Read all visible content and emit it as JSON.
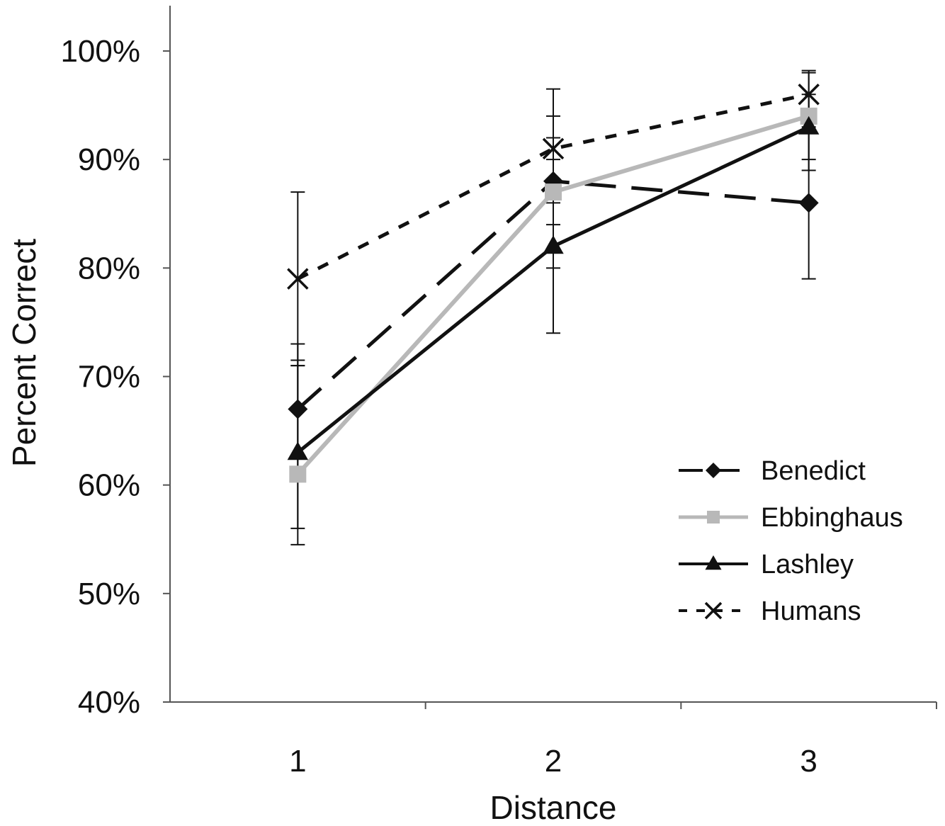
{
  "chart_data": {
    "type": "line",
    "title": "",
    "xlabel": "Distance",
    "ylabel": "Percent Correct",
    "categories": [
      "1",
      "2",
      "3"
    ],
    "ylim": [
      0.4,
      1.0
    ],
    "yticks": [
      0.4,
      0.5,
      0.6,
      0.7,
      0.8,
      0.9,
      1.0
    ],
    "ytick_labels": [
      "40%",
      "50%",
      "60%",
      "70%",
      "80%",
      "90%",
      "100%"
    ],
    "grid": false,
    "legend_position": "right",
    "series": [
      {
        "name": "Benedict",
        "values": [
          0.67,
          0.88,
          0.86
        ],
        "err_low": [
          0.61,
          0.84,
          0.79
        ],
        "err_high": [
          0.73,
          0.92,
          0.93
        ],
        "color": "#111111",
        "dash": "long-dash",
        "marker": "diamond"
      },
      {
        "name": "Ebbinghaus",
        "values": [
          0.61,
          0.87,
          0.94
        ],
        "err_low": [
          0.545,
          0.8,
          0.89
        ],
        "err_high": [
          0.715,
          0.94,
          0.98
        ],
        "color": "#b8b8b8",
        "dash": "solid",
        "marker": "square"
      },
      {
        "name": "Lashley",
        "values": [
          0.63,
          0.82,
          0.93
        ],
        "err_low": [
          0.56,
          0.74,
          0.9
        ],
        "err_high": [
          0.71,
          0.9,
          0.96
        ],
        "color": "#111111",
        "dash": "solid",
        "marker": "triangle"
      },
      {
        "name": "Humans",
        "values": [
          0.79,
          0.91,
          0.96
        ],
        "err_low": [
          0.71,
          0.86,
          0.94
        ],
        "err_high": [
          0.87,
          0.965,
          0.982
        ],
        "color": "#111111",
        "dash": "short-dash",
        "marker": "x"
      }
    ]
  }
}
